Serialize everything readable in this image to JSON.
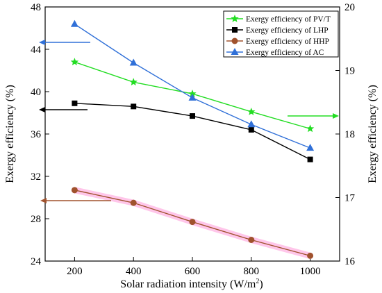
{
  "chart_data": {
    "type": "line",
    "x": [
      200,
      400,
      600,
      800,
      1000
    ],
    "xlabel": "Solar radiation intensity (W/m",
    "xlabel_sup": "2",
    "xlabel_end": ")",
    "xlim": [
      100,
      1100
    ],
    "xticks": [
      "200",
      "400",
      "600",
      "800",
      "1000"
    ],
    "ylabel_left": "Exergy efficiency (%)",
    "ylim_left": [
      24,
      48
    ],
    "yticks_left": [
      "24",
      "28",
      "32",
      "36",
      "40",
      "44",
      "48"
    ],
    "ylabel_right": "Exergy efficiency (%)",
    "ylim_right": [
      16,
      20
    ],
    "yticks_right": [
      "16",
      "17",
      "18",
      "19",
      "20"
    ],
    "grid": false,
    "legend_position": "top-right",
    "series": [
      {
        "name": "Exergy efficiency of PV/T",
        "axis": "left",
        "marker": "star",
        "color": "#22dd22",
        "values": [
          42.8,
          40.9,
          39.8,
          38.1,
          36.5
        ]
      },
      {
        "name": "Exergy efficiency of LHP",
        "axis": "left",
        "marker": "square",
        "color": "#000000",
        "values": [
          38.9,
          38.6,
          37.7,
          36.4,
          33.6
        ]
      },
      {
        "name": "Exergy efficiency of HHP",
        "axis": "left",
        "marker": "circle",
        "color": "#a0522d",
        "halo": "#ffc0e8",
        "values": [
          30.7,
          29.5,
          27.7,
          26.0,
          24.5
        ]
      },
      {
        "name": "Exergy efficiency of AC",
        "axis": "right",
        "marker": "triangle",
        "color": "#3070d8",
        "values": [
          19.73,
          19.12,
          18.57,
          18.15,
          17.78
        ]
      }
    ],
    "arrows": [
      {
        "series": "Exergy efficiency of AC",
        "direction": "left",
        "color": "#3070d8"
      },
      {
        "series": "Exergy efficiency of LHP",
        "direction": "left",
        "color": "#000000"
      },
      {
        "series": "Exergy efficiency of HHP",
        "direction": "left",
        "color": "#a0522d"
      },
      {
        "series": "Exergy efficiency of PV/T",
        "direction": "right",
        "color": "#22dd22"
      }
    ]
  }
}
